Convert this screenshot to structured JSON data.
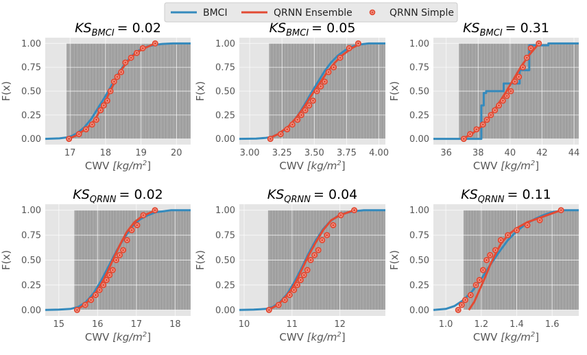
{
  "legend": {
    "placement": "top-center",
    "entries": [
      {
        "label": "BMCI",
        "color": "#348abd",
        "kind": "line"
      },
      {
        "label": "QRNN Ensemble",
        "color": "#e24a33",
        "kind": "line"
      },
      {
        "label": "QRNN Simple",
        "color": "#e24a33",
        "kind": "marker"
      }
    ]
  },
  "colors": {
    "plot_bg": "#e5e5e5",
    "grid": "#ffffff",
    "histogram": "#7f7f7f",
    "tick_text": "#555555",
    "title_text": "#000000"
  },
  "chart_data": [
    {
      "type": "line",
      "title": "$KS_{BMCI} = 0.02$",
      "title_main": "KS",
      "title_sub": "BMCI",
      "title_value": "= 0.02",
      "xlabel": "CWV [kg/m²]",
      "xlabel_text": "CWV ",
      "xlabel_unit": "[kg/m",
      "xlabel_exp": "2",
      "xlabel_close": "]",
      "ylabel": "F(x)",
      "xlim": [
        16.3,
        20.4
      ],
      "ylim": [
        -0.06,
        1.06
      ],
      "xticks": [
        17,
        18,
        19,
        20
      ],
      "xtick_labels": [
        "17",
        "18",
        "19",
        "20"
      ],
      "yticks": [
        0,
        0.25,
        0.5,
        0.75,
        1.0
      ],
      "ytick_labels": [
        "0.00",
        "0.25",
        "0.50",
        "0.75",
        "1.00"
      ],
      "grid": true,
      "histogram": {
        "range": [
          16.9,
          20.4
        ]
      },
      "series": [
        {
          "name": "BMCI",
          "kind": "line",
          "x": [
            16.3,
            16.7,
            16.9,
            17.05,
            17.2,
            17.4,
            17.6,
            17.8,
            18.0,
            18.2,
            18.4,
            18.6,
            18.8,
            19.0,
            19.2,
            19.4,
            19.6,
            19.9,
            20.4
          ],
          "y": [
            0.0,
            0.005,
            0.015,
            0.03,
            0.06,
            0.12,
            0.21,
            0.33,
            0.45,
            0.58,
            0.71,
            0.81,
            0.89,
            0.94,
            0.97,
            0.985,
            0.995,
            1.0,
            1.0
          ]
        },
        {
          "name": "QRNN Ensemble",
          "kind": "line",
          "x": [
            16.95,
            17.2,
            17.5,
            17.7,
            17.85,
            18.0,
            18.2,
            18.4,
            18.6,
            18.85,
            19.1,
            19.4
          ],
          "y": [
            0.0,
            0.04,
            0.12,
            0.2,
            0.3,
            0.4,
            0.55,
            0.7,
            0.8,
            0.9,
            0.95,
            1.0
          ]
        },
        {
          "name": "QRNN Simple",
          "kind": "scatter",
          "x": [
            16.97,
            17.25,
            17.45,
            17.62,
            17.74,
            17.86,
            17.95,
            18.05,
            18.14,
            18.24,
            18.33,
            18.44,
            18.56,
            18.72,
            18.88,
            19.05,
            19.4
          ],
          "y": [
            0.0,
            0.05,
            0.1,
            0.15,
            0.2,
            0.3,
            0.35,
            0.4,
            0.5,
            0.6,
            0.65,
            0.7,
            0.8,
            0.85,
            0.9,
            0.95,
            1.0
          ]
        }
      ]
    },
    {
      "type": "line",
      "title": "$KS_{BMCI} = 0.05$",
      "title_main": "KS",
      "title_sub": "BMCI",
      "title_value": "= 0.05",
      "xlabel": "CWV [kg/m²]",
      "xlabel_text": "CWV ",
      "xlabel_unit": "[kg/m",
      "xlabel_exp": "2",
      "xlabel_close": "]",
      "ylabel": "F(x)",
      "xlim": [
        2.92,
        4.05
      ],
      "ylim": [
        -0.06,
        1.06
      ],
      "xticks": [
        3.0,
        3.25,
        3.5,
        3.75,
        4.0
      ],
      "xtick_labels": [
        "3.00",
        "3.25",
        "3.50",
        "3.75",
        "4.00"
      ],
      "yticks": [
        0,
        0.25,
        0.5,
        0.75,
        1.0
      ],
      "ytick_labels": [
        "0.00",
        "0.25",
        "0.50",
        "0.75",
        "1.00"
      ],
      "grid": true,
      "histogram": {
        "range": [
          3.15,
          4.05
        ]
      },
      "series": [
        {
          "name": "BMCI",
          "kind": "line",
          "x": [
            2.92,
            3.05,
            3.12,
            3.17,
            3.22,
            3.28,
            3.33,
            3.38,
            3.43,
            3.48,
            3.53,
            3.58,
            3.63,
            3.68,
            3.74,
            3.8,
            3.86,
            3.92,
            4.05
          ],
          "y": [
            0.0,
            0.003,
            0.01,
            0.02,
            0.05,
            0.1,
            0.17,
            0.26,
            0.37,
            0.49,
            0.6,
            0.71,
            0.8,
            0.87,
            0.93,
            0.97,
            0.99,
            1.0,
            1.0
          ]
        },
        {
          "name": "QRNN Ensemble",
          "kind": "line",
          "x": [
            3.14,
            3.22,
            3.3,
            3.36,
            3.42,
            3.48,
            3.54,
            3.6,
            3.66,
            3.72,
            3.79,
            3.86
          ],
          "y": [
            0.0,
            0.05,
            0.13,
            0.22,
            0.33,
            0.46,
            0.58,
            0.7,
            0.8,
            0.88,
            0.95,
            1.0
          ]
        },
        {
          "name": "QRNN Simple",
          "kind": "scatter",
          "x": [
            3.16,
            3.24,
            3.29,
            3.33,
            3.37,
            3.4,
            3.43,
            3.46,
            3.49,
            3.52,
            3.55,
            3.58,
            3.61,
            3.65,
            3.7,
            3.77,
            3.84
          ],
          "y": [
            0.0,
            0.05,
            0.1,
            0.15,
            0.2,
            0.25,
            0.3,
            0.35,
            0.4,
            0.5,
            0.55,
            0.6,
            0.7,
            0.75,
            0.85,
            0.95,
            1.0
          ]
        }
      ]
    },
    {
      "type": "line",
      "title": "$KS_{BMCI} = 0.31$",
      "title_main": "KS",
      "title_sub": "BMCI",
      "title_value": "= 0.31",
      "xlabel": "CWV [kg/m²]",
      "xlabel_text": "CWV ",
      "xlabel_unit": "[kg/m",
      "xlabel_exp": "2",
      "xlabel_close": "]",
      "ylabel": "F(x)",
      "xlim": [
        35.2,
        44.3
      ],
      "ylim": [
        -0.06,
        1.06
      ],
      "xticks": [
        36,
        38,
        40,
        42,
        44
      ],
      "xtick_labels": [
        "36",
        "38",
        "40",
        "42",
        "44"
      ],
      "yticks": [
        0,
        0.25,
        0.5,
        0.75,
        1.0
      ],
      "ytick_labels": [
        "0.00",
        "0.25",
        "0.50",
        "0.75",
        "1.00"
      ],
      "grid": true,
      "histogram": {
        "range": [
          36.8,
          44.3
        ]
      },
      "series": [
        {
          "name": "BMCI",
          "kind": "step",
          "x": [
            35.2,
            38.2,
            38.2,
            38.35,
            38.35,
            38.5,
            38.5,
            39.6,
            39.6,
            40.6,
            40.6,
            41.2,
            41.2,
            42.4,
            42.4,
            44.3
          ],
          "y": [
            0.0,
            0.0,
            0.35,
            0.35,
            0.48,
            0.48,
            0.5,
            0.5,
            0.58,
            0.58,
            0.72,
            0.72,
            0.98,
            0.98,
            1.0,
            1.0
          ]
        },
        {
          "name": "QRNN Ensemble",
          "kind": "line",
          "x": [
            37.0,
            37.6,
            38.2,
            38.7,
            39.2,
            39.7,
            40.2,
            40.7,
            41.2,
            41.8
          ],
          "y": [
            0.0,
            0.05,
            0.13,
            0.23,
            0.35,
            0.48,
            0.62,
            0.76,
            0.88,
            1.0
          ]
        },
        {
          "name": "QRNN Simple",
          "kind": "scatter",
          "x": [
            37.1,
            37.5,
            37.9,
            38.3,
            38.55,
            38.8,
            39.05,
            39.3,
            39.55,
            39.8,
            40.05,
            40.3,
            40.55,
            40.8,
            41.05,
            41.3,
            41.8
          ],
          "y": [
            0.0,
            0.05,
            0.1,
            0.15,
            0.2,
            0.25,
            0.3,
            0.35,
            0.4,
            0.45,
            0.5,
            0.6,
            0.65,
            0.75,
            0.85,
            0.95,
            1.0
          ]
        }
      ]
    },
    {
      "type": "line",
      "title": "$KS_{QRNN} = 0.02$",
      "title_main": "KS",
      "title_sub": "QRNN",
      "title_value": "= 0.02",
      "xlabel": "CWV [kg/m²]",
      "xlabel_text": "CWV ",
      "xlabel_unit": "[kg/m",
      "xlabel_exp": "2",
      "xlabel_close": "]",
      "ylabel": "F(x)",
      "xlim": [
        14.65,
        18.4
      ],
      "ylim": [
        -0.06,
        1.06
      ],
      "xticks": [
        15,
        16,
        17,
        18
      ],
      "xtick_labels": [
        "15",
        "16",
        "17",
        "18"
      ],
      "yticks": [
        0,
        0.25,
        0.5,
        0.75,
        1.0
      ],
      "ytick_labels": [
        "0.00",
        "0.25",
        "0.50",
        "0.75",
        "1.00"
      ],
      "grid": true,
      "histogram": {
        "range": [
          15.4,
          18.4
        ]
      },
      "series": [
        {
          "name": "BMCI",
          "kind": "line",
          "x": [
            14.65,
            15.0,
            15.3,
            15.5,
            15.7,
            15.9,
            16.1,
            16.3,
            16.5,
            16.7,
            16.9,
            17.1,
            17.3,
            17.5,
            17.7,
            17.9,
            18.4
          ],
          "y": [
            0.0,
            0.003,
            0.01,
            0.03,
            0.08,
            0.17,
            0.3,
            0.45,
            0.6,
            0.73,
            0.84,
            0.91,
            0.95,
            0.98,
            0.99,
            1.0,
            1.0
          ]
        },
        {
          "name": "QRNN Ensemble",
          "kind": "line",
          "x": [
            15.45,
            15.65,
            15.85,
            16.0,
            16.15,
            16.3,
            16.45,
            16.6,
            16.75,
            16.95,
            17.15,
            17.5
          ],
          "y": [
            0.0,
            0.05,
            0.12,
            0.2,
            0.3,
            0.42,
            0.55,
            0.67,
            0.78,
            0.88,
            0.94,
            1.0
          ]
        },
        {
          "name": "QRNN Simple",
          "kind": "scatter",
          "x": [
            15.47,
            15.68,
            15.83,
            15.95,
            16.05,
            16.15,
            16.23,
            16.31,
            16.39,
            16.48,
            16.57,
            16.66,
            16.76,
            16.88,
            17.02,
            17.18,
            17.48
          ],
          "y": [
            0.0,
            0.05,
            0.1,
            0.15,
            0.2,
            0.25,
            0.3,
            0.35,
            0.4,
            0.5,
            0.55,
            0.6,
            0.7,
            0.8,
            0.85,
            0.95,
            1.0
          ]
        }
      ]
    },
    {
      "type": "line",
      "title": "$KS_{QRNN} = 0.04$",
      "title_main": "KS",
      "title_sub": "QRNN",
      "title_value": "= 0.04",
      "xlabel": "CWV [kg/m²]",
      "xlabel_text": "CWV ",
      "xlabel_unit": "[kg/m",
      "xlabel_exp": "2",
      "xlabel_close": "]",
      "ylabel": "F(x)",
      "xlim": [
        9.9,
        12.95
      ],
      "ylim": [
        -0.06,
        1.06
      ],
      "xticks": [
        10,
        11,
        12
      ],
      "xtick_labels": [
        "10",
        "11",
        "12"
      ],
      "yticks": [
        0,
        0.25,
        0.5,
        0.75,
        1.0
      ],
      "ytick_labels": [
        "0.00",
        "0.25",
        "0.50",
        "0.75",
        "1.00"
      ],
      "grid": true,
      "histogram": {
        "range": [
          10.5,
          12.95
        ]
      },
      "series": [
        {
          "name": "BMCI",
          "kind": "line",
          "x": [
            9.9,
            10.2,
            10.45,
            10.6,
            10.75,
            10.9,
            11.05,
            11.2,
            11.35,
            11.5,
            11.65,
            11.8,
            11.95,
            12.1,
            12.3,
            12.5,
            12.95
          ],
          "y": [
            0.0,
            0.003,
            0.01,
            0.03,
            0.08,
            0.16,
            0.28,
            0.42,
            0.57,
            0.7,
            0.81,
            0.89,
            0.94,
            0.97,
            0.99,
            1.0,
            1.0
          ]
        },
        {
          "name": "QRNN Ensemble",
          "kind": "line",
          "x": [
            10.5,
            10.7,
            10.85,
            10.98,
            11.1,
            11.22,
            11.35,
            11.5,
            11.65,
            11.82,
            12.0,
            12.3
          ],
          "y": [
            0.0,
            0.05,
            0.12,
            0.2,
            0.3,
            0.42,
            0.55,
            0.68,
            0.8,
            0.9,
            0.95,
            1.0
          ]
        },
        {
          "name": "QRNN Simple",
          "kind": "scatter",
          "x": [
            10.52,
            10.72,
            10.85,
            10.95,
            11.04,
            11.11,
            11.18,
            11.25,
            11.32,
            11.39,
            11.47,
            11.55,
            11.63,
            11.73,
            11.86,
            12.02,
            12.3
          ],
          "y": [
            0.0,
            0.05,
            0.1,
            0.15,
            0.2,
            0.25,
            0.3,
            0.35,
            0.4,
            0.5,
            0.55,
            0.6,
            0.7,
            0.75,
            0.85,
            0.95,
            1.0
          ]
        }
      ]
    },
    {
      "type": "line",
      "title": "$KS_{QRNN} = 0.11$",
      "title_main": "KS",
      "title_sub": "QRNN",
      "title_value": "= 0.11",
      "xlabel": "CWV [kg/m²]",
      "xlabel_text": "CWV ",
      "xlabel_unit": "[kg/m",
      "xlabel_exp": "2",
      "xlabel_close": "]",
      "ylabel": "F(x)",
      "xlim": [
        0.93,
        1.75
      ],
      "ylim": [
        -0.06,
        1.06
      ],
      "xticks": [
        1.0,
        1.2,
        1.4,
        1.6
      ],
      "xtick_labels": [
        "1.0",
        "1.2",
        "1.4",
        "1.6"
      ],
      "yticks": [
        0,
        0.25,
        0.5,
        0.75,
        1.0
      ],
      "ytick_labels": [
        "0.00",
        "0.25",
        "0.50",
        "0.75",
        "1.00"
      ],
      "grid": true,
      "histogram": {
        "range": [
          1.1,
          1.75
        ]
      },
      "series": [
        {
          "name": "BMCI",
          "kind": "line",
          "x": [
            0.93,
            1.0,
            1.05,
            1.1,
            1.15,
            1.2,
            1.25,
            1.3,
            1.35,
            1.4,
            1.45,
            1.5,
            1.55,
            1.6,
            1.67,
            1.75
          ],
          "y": [
            0.0,
            0.01,
            0.04,
            0.1,
            0.19,
            0.31,
            0.45,
            0.58,
            0.7,
            0.79,
            0.86,
            0.91,
            0.95,
            0.98,
            1.0,
            1.0
          ]
        },
        {
          "name": "QRNN Ensemble",
          "kind": "line",
          "x": [
            1.13,
            1.16,
            1.19,
            1.22,
            1.25,
            1.28,
            1.31,
            1.35,
            1.4,
            1.46,
            1.54,
            1.65
          ],
          "y": [
            0.0,
            0.08,
            0.2,
            0.32,
            0.45,
            0.56,
            0.66,
            0.75,
            0.82,
            0.88,
            0.93,
            1.0
          ]
        },
        {
          "name": "QRNN Simple",
          "kind": "scatter",
          "x": [
            1.07,
            1.09,
            1.11,
            1.14,
            1.17,
            1.19,
            1.21,
            1.23,
            1.25,
            1.28,
            1.31,
            1.35,
            1.4,
            1.46,
            1.53,
            1.65
          ],
          "y": [
            0.0,
            0.05,
            0.1,
            0.15,
            0.25,
            0.3,
            0.4,
            0.5,
            0.55,
            0.6,
            0.7,
            0.75,
            0.8,
            0.85,
            0.9,
            1.0
          ]
        }
      ]
    }
  ]
}
